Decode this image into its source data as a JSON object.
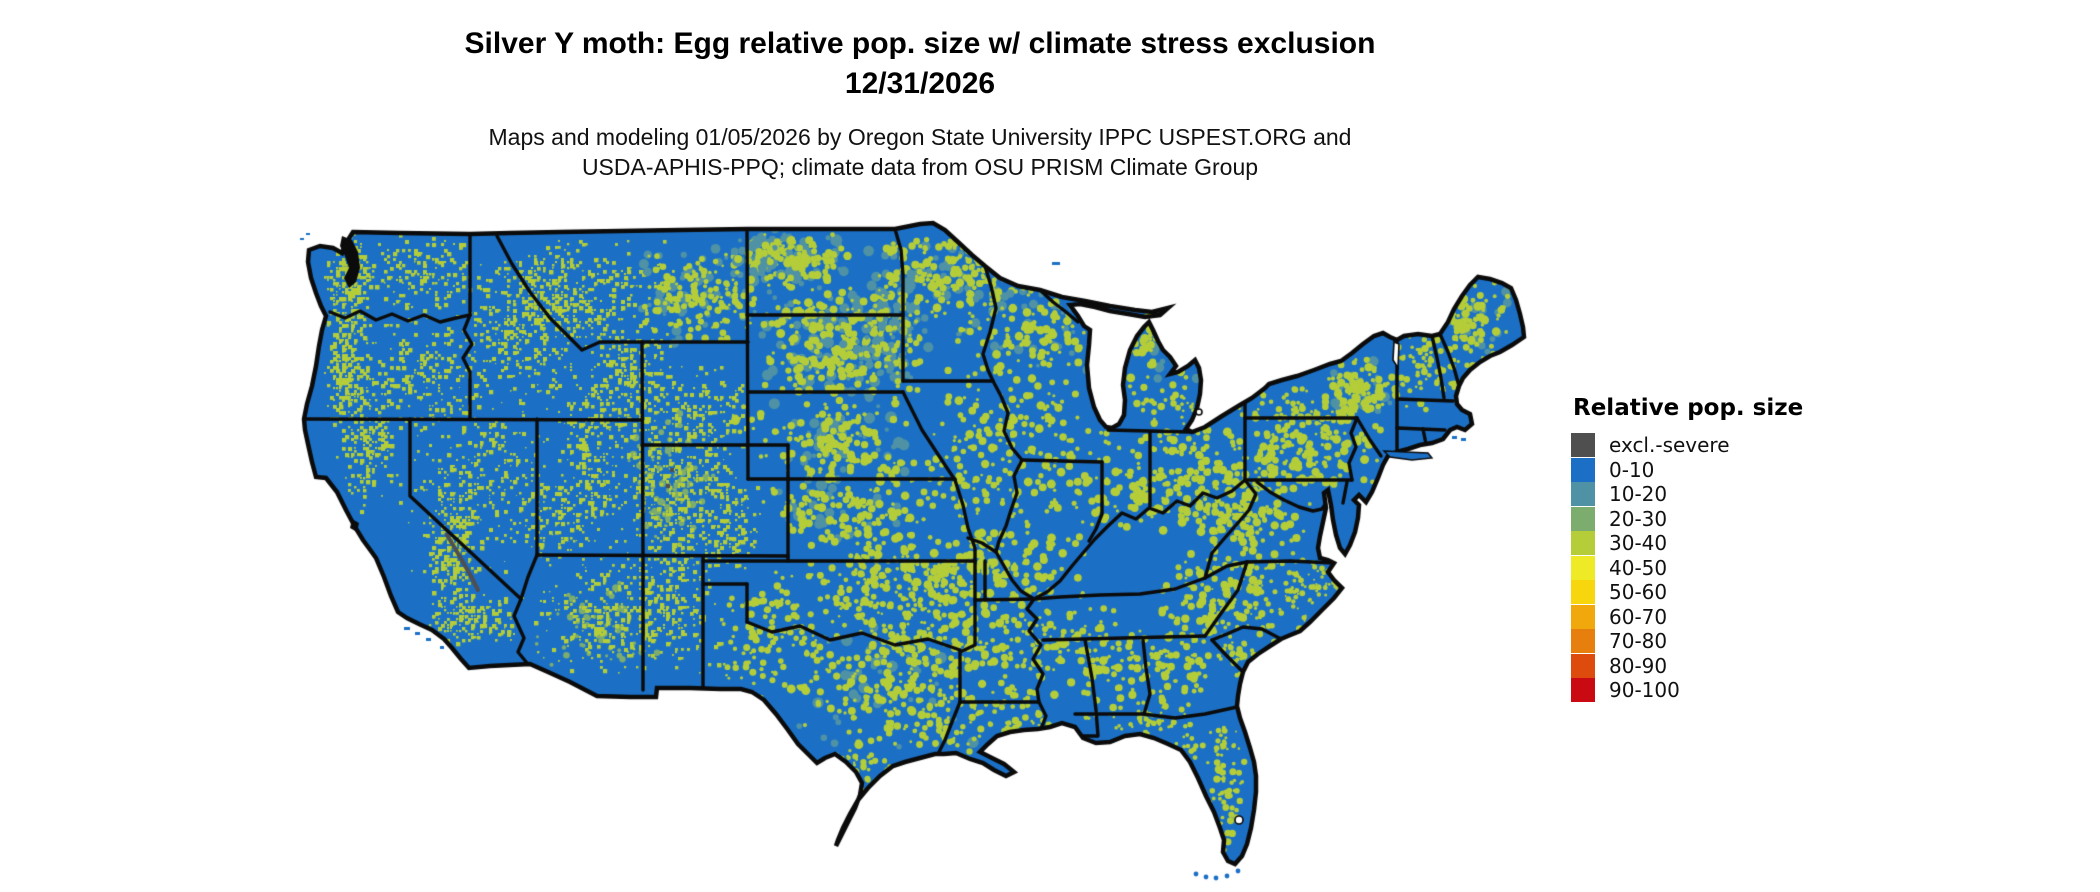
{
  "header": {
    "title_line1": "Silver Y moth: Egg relative pop. size w/ climate stress exclusion",
    "title_line2": "12/31/2026",
    "subtitle_line1": "Maps and modeling 01/05/2026 by Oregon State University IPPC USPEST.ORG and",
    "subtitle_line2": "USDA-APHIS-PPQ; climate data from OSU PRISM Climate Group"
  },
  "legend": {
    "title": "Relative pop. size",
    "items": [
      {
        "label": "excl.-severe",
        "color": "#4f4f4f"
      },
      {
        "label": "0-10",
        "color": "#1b70c6"
      },
      {
        "label": "10-20",
        "color": "#4f92a5"
      },
      {
        "label": "20-30",
        "color": "#7cac6e"
      },
      {
        "label": "30-40",
        "color": "#b4cd39"
      },
      {
        "label": "40-50",
        "color": "#eeea25"
      },
      {
        "label": "50-60",
        "color": "#f7d60e"
      },
      {
        "label": "60-70",
        "color": "#f0a80c"
      },
      {
        "label": "70-80",
        "color": "#e67f0e"
      },
      {
        "label": "80-90",
        "color": "#dd4b0d"
      },
      {
        "label": "90-100",
        "color": "#ca0a12"
      }
    ]
  },
  "map": {
    "description": "CONUS raster map of relative population size, dominated by 0-10 (blue) with 30-40 (yellow-green) terrain-following patches, 10-20 teal fringes, rare 20-30 green, and tiny excl.-severe gray in the Sierra Nevada",
    "land_color": "#1b70c6",
    "water_color": "#ffffff",
    "border_color": "#0b0b0b",
    "speckle_high": "#b4cd39",
    "speckle_teal": "#4f92a5",
    "speckle_mid": "#7cac6e",
    "speckle_excl": "#4f4f4f"
  }
}
